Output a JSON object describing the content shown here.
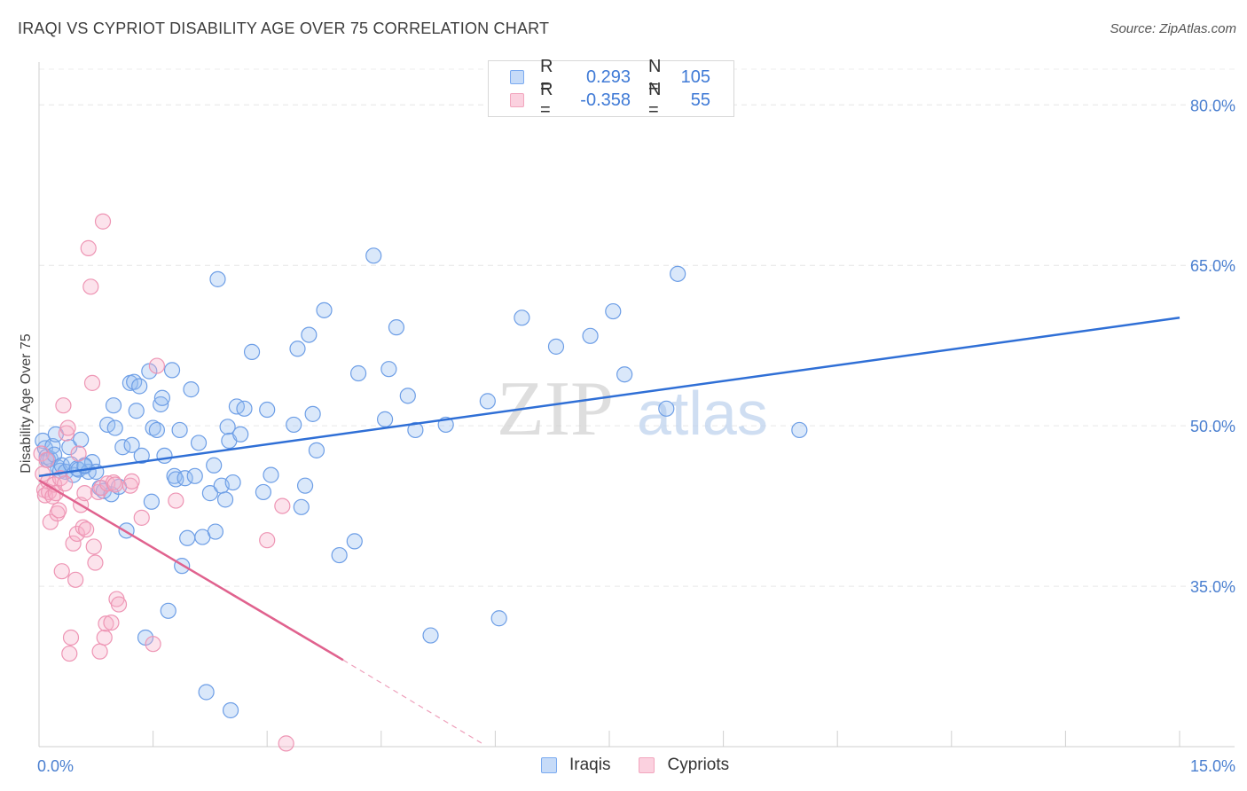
{
  "title": "IRAQI VS CYPRIOT DISABILITY AGE OVER 75 CORRELATION CHART",
  "source": "Source: ZipAtlas.com",
  "watermark": {
    "zip": "ZIP",
    "atlas": "atlas"
  },
  "legend": {
    "rows": [
      {
        "r_label": "R =",
        "r_value": "0.293",
        "n_label": "N =",
        "n_value": "105",
        "color": "#7aaaf0"
      },
      {
        "r_label": "R =",
        "r_value": "-0.358",
        "n_label": "N =",
        "n_value": "55",
        "color": "#f2a6be"
      }
    ]
  },
  "bottom_legend": [
    {
      "label": "Iraqis",
      "color": "#7aaaf0"
    },
    {
      "label": "Cypriots",
      "color": "#f2a6be"
    }
  ],
  "chart_data": {
    "type": "scatter",
    "title": "IRAQI VS CYPRIOT DISABILITY AGE OVER 75 CORRELATION CHART",
    "xlabel": "",
    "ylabel": "Disability Age Over 75",
    "xlim": [
      0,
      15
    ],
    "ylim": [
      20,
      84
    ],
    "x_tick_labels": [
      {
        "value": 0,
        "label": "0.0%"
      },
      {
        "value": 15,
        "label": "15.0%"
      }
    ],
    "y_tick_labels": [
      {
        "value": 80,
        "label": "80.0%"
      },
      {
        "value": 65,
        "label": "65.0%"
      },
      {
        "value": 50,
        "label": "50.0%"
      },
      {
        "value": 35,
        "label": "35.0%"
      }
    ],
    "grid": true,
    "series": [
      {
        "name": "Iraqis",
        "color": "#5b93e3",
        "trend": {
          "x": [
            0.0,
            15.0
          ],
          "y": [
            45.3,
            60.1
          ]
        },
        "points": [
          [
            0.05,
            48.6
          ],
          [
            0.08,
            47.9
          ],
          [
            0.1,
            47.1
          ],
          [
            0.12,
            46.8
          ],
          [
            0.15,
            46.9
          ],
          [
            0.18,
            48.1
          ],
          [
            0.2,
            47.3
          ],
          [
            0.22,
            49.2
          ],
          [
            0.25,
            46.1
          ],
          [
            0.28,
            45.8
          ],
          [
            0.3,
            46.3
          ],
          [
            0.35,
            45.7
          ],
          [
            0.4,
            48.0
          ],
          [
            0.42,
            46.4
          ],
          [
            0.45,
            45.4
          ],
          [
            0.5,
            46.0
          ],
          [
            0.52,
            45.9
          ],
          [
            0.55,
            48.7
          ],
          [
            0.6,
            46.2
          ],
          [
            0.65,
            45.7
          ],
          [
            0.7,
            46.6
          ],
          [
            0.75,
            45.7
          ],
          [
            0.8,
            44.2
          ],
          [
            0.85,
            43.9
          ],
          [
            0.9,
            50.1
          ],
          [
            0.95,
            43.6
          ],
          [
            0.98,
            51.9
          ],
          [
            1.0,
            49.8
          ],
          [
            1.05,
            44.3
          ],
          [
            1.1,
            48.0
          ],
          [
            1.15,
            40.2
          ],
          [
            1.2,
            54.0
          ],
          [
            1.22,
            48.2
          ],
          [
            1.25,
            54.1
          ],
          [
            1.28,
            51.4
          ],
          [
            1.32,
            53.7
          ],
          [
            1.35,
            47.2
          ],
          [
            1.4,
            30.2
          ],
          [
            1.45,
            55.1
          ],
          [
            1.48,
            42.9
          ],
          [
            1.5,
            49.8
          ],
          [
            1.55,
            49.6
          ],
          [
            1.6,
            52.0
          ],
          [
            1.62,
            52.6
          ],
          [
            1.65,
            47.2
          ],
          [
            1.7,
            32.7
          ],
          [
            1.75,
            55.2
          ],
          [
            1.78,
            45.3
          ],
          [
            1.8,
            45.0
          ],
          [
            1.85,
            49.6
          ],
          [
            1.88,
            36.9
          ],
          [
            1.92,
            45.1
          ],
          [
            1.95,
            39.5
          ],
          [
            2.0,
            53.4
          ],
          [
            2.05,
            45.3
          ],
          [
            2.1,
            48.4
          ],
          [
            2.15,
            39.6
          ],
          [
            2.2,
            25.1
          ],
          [
            2.25,
            43.7
          ],
          [
            2.3,
            46.3
          ],
          [
            2.32,
            40.1
          ],
          [
            2.35,
            63.7
          ],
          [
            2.4,
            44.4
          ],
          [
            2.45,
            43.1
          ],
          [
            2.48,
            49.9
          ],
          [
            2.5,
            48.6
          ],
          [
            2.52,
            23.4
          ],
          [
            2.55,
            44.7
          ],
          [
            2.6,
            51.8
          ],
          [
            2.65,
            49.2
          ],
          [
            2.7,
            51.6
          ],
          [
            2.8,
            56.9
          ],
          [
            2.95,
            43.8
          ],
          [
            3.0,
            51.5
          ],
          [
            3.05,
            45.4
          ],
          [
            3.35,
            50.1
          ],
          [
            3.4,
            57.2
          ],
          [
            3.45,
            42.4
          ],
          [
            3.5,
            44.4
          ],
          [
            3.55,
            58.5
          ],
          [
            3.6,
            51.1
          ],
          [
            3.65,
            47.7
          ],
          [
            3.75,
            60.8
          ],
          [
            3.95,
            37.9
          ],
          [
            4.15,
            39.2
          ],
          [
            4.2,
            54.9
          ],
          [
            4.4,
            65.9
          ],
          [
            4.55,
            50.6
          ],
          [
            4.6,
            55.3
          ],
          [
            4.7,
            59.2
          ],
          [
            4.85,
            52.8
          ],
          [
            4.95,
            49.6
          ],
          [
            5.15,
            30.4
          ],
          [
            5.35,
            50.1
          ],
          [
            5.9,
            52.3
          ],
          [
            6.05,
            32.0
          ],
          [
            6.35,
            60.1
          ],
          [
            6.8,
            57.4
          ],
          [
            7.25,
            58.4
          ],
          [
            7.55,
            60.7
          ],
          [
            7.7,
            54.8
          ],
          [
            8.25,
            51.6
          ],
          [
            8.4,
            64.2
          ],
          [
            10.0,
            49.6
          ],
          [
            0.6,
            46.3
          ]
        ]
      },
      {
        "name": "Cypriots",
        "color": "#ea7fa3",
        "trend": {
          "x": [
            0.0,
            4.0
          ],
          "y": [
            44.9,
            28.1
          ]
        },
        "trend_dashed": {
          "x": [
            4.0,
            5.85
          ],
          "y": [
            28.1,
            20.2
          ]
        },
        "points": [
          [
            0.03,
            47.4
          ],
          [
            0.05,
            45.5
          ],
          [
            0.07,
            44.0
          ],
          [
            0.08,
            43.5
          ],
          [
            0.1,
            46.8
          ],
          [
            0.12,
            44.8
          ],
          [
            0.13,
            43.8
          ],
          [
            0.15,
            41.0
          ],
          [
            0.18,
            43.4
          ],
          [
            0.2,
            44.5
          ],
          [
            0.22,
            43.7
          ],
          [
            0.24,
            41.8
          ],
          [
            0.26,
            42.1
          ],
          [
            0.28,
            45.1
          ],
          [
            0.3,
            36.4
          ],
          [
            0.32,
            51.9
          ],
          [
            0.34,
            44.6
          ],
          [
            0.36,
            49.3
          ],
          [
            0.38,
            49.8
          ],
          [
            0.4,
            28.7
          ],
          [
            0.42,
            30.2
          ],
          [
            0.45,
            39.0
          ],
          [
            0.48,
            35.6
          ],
          [
            0.5,
            39.9
          ],
          [
            0.52,
            47.4
          ],
          [
            0.55,
            42.6
          ],
          [
            0.58,
            40.5
          ],
          [
            0.6,
            43.7
          ],
          [
            0.62,
            40.3
          ],
          [
            0.65,
            66.6
          ],
          [
            0.68,
            63.0
          ],
          [
            0.7,
            54.0
          ],
          [
            0.72,
            38.7
          ],
          [
            0.74,
            37.2
          ],
          [
            0.78,
            43.8
          ],
          [
            0.8,
            28.9
          ],
          [
            0.82,
            44.2
          ],
          [
            0.84,
            69.1
          ],
          [
            0.86,
            30.2
          ],
          [
            0.88,
            31.5
          ],
          [
            0.9,
            44.6
          ],
          [
            0.95,
            31.6
          ],
          [
            0.98,
            44.7
          ],
          [
            1.0,
            44.5
          ],
          [
            1.02,
            33.8
          ],
          [
            1.05,
            33.3
          ],
          [
            1.2,
            44.4
          ],
          [
            1.22,
            44.8
          ],
          [
            1.35,
            41.4
          ],
          [
            1.5,
            29.6
          ],
          [
            1.55,
            55.6
          ],
          [
            1.8,
            43.0
          ],
          [
            3.0,
            39.3
          ],
          [
            3.2,
            42.5
          ],
          [
            3.25,
            20.3
          ]
        ]
      }
    ]
  }
}
